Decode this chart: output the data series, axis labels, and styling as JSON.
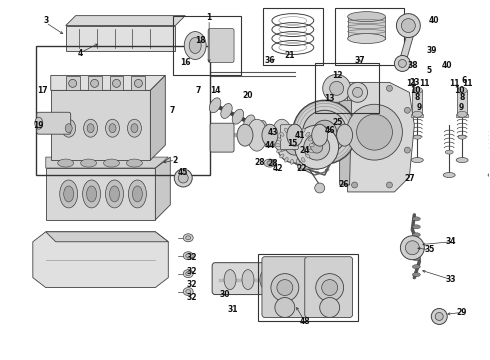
{
  "bg_color": "#ffffff",
  "line_color": "#404040",
  "fig_width": 4.9,
  "fig_height": 3.6,
  "dpi": 100
}
